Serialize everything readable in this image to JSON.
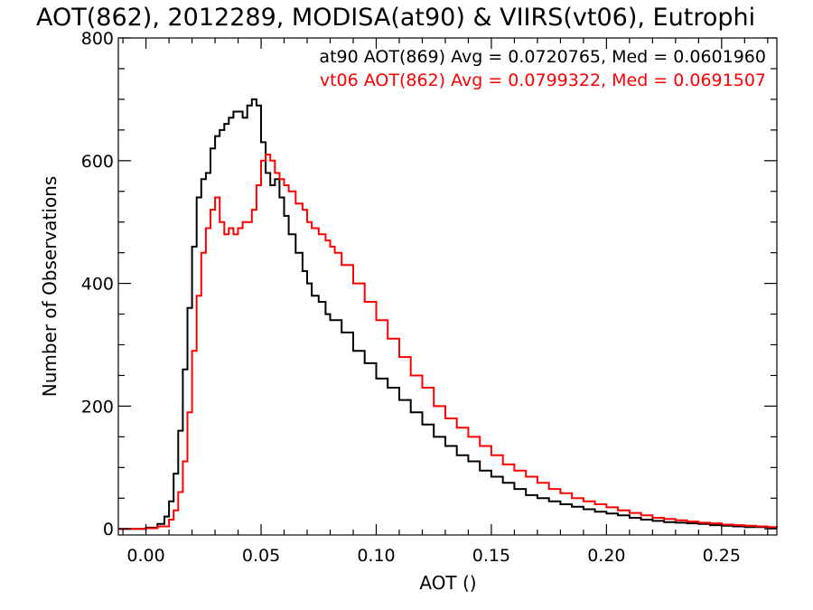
{
  "chart_data": {
    "type": "line",
    "title": "AOT(862), 2012289, MODISA(at90) & VIIRS(vt06), Eutrophi",
    "xlabel": "AOT ()",
    "ylabel": "Number of Observations",
    "xlim": [
      -0.012,
      0.274
    ],
    "ylim": [
      -10,
      800
    ],
    "xticks": [
      0.0,
      0.05,
      0.1,
      0.15,
      0.2,
      0.25
    ],
    "xtick_labels": [
      "0.00",
      "0.05",
      "0.10",
      "0.15",
      "0.20",
      "0.25"
    ],
    "yticks": [
      0,
      200,
      400,
      600,
      800
    ],
    "ytick_labels": [
      "0",
      "200",
      "400",
      "600",
      "800"
    ],
    "grid": false,
    "legend_placement": "top-right",
    "series": [
      {
        "name": "at90",
        "legend": "at90 AOT(869) Avg = 0.0720765, Med = 0.0601960",
        "color": "#000000",
        "x": [
          -0.012,
          0.0,
          0.005,
          0.008,
          0.01,
          0.012,
          0.014,
          0.016,
          0.018,
          0.02,
          0.022,
          0.024,
          0.026,
          0.028,
          0.03,
          0.032,
          0.034,
          0.036,
          0.038,
          0.04,
          0.042,
          0.044,
          0.046,
          0.048,
          0.05,
          0.052,
          0.054,
          0.056,
          0.058,
          0.06,
          0.062,
          0.065,
          0.068,
          0.07,
          0.072,
          0.075,
          0.078,
          0.08,
          0.085,
          0.09,
          0.095,
          0.1,
          0.105,
          0.11,
          0.115,
          0.12,
          0.125,
          0.13,
          0.135,
          0.14,
          0.145,
          0.15,
          0.155,
          0.16,
          0.165,
          0.17,
          0.175,
          0.18,
          0.185,
          0.19,
          0.195,
          0.2,
          0.205,
          0.21,
          0.215,
          0.22,
          0.225,
          0.23,
          0.235,
          0.24,
          0.245,
          0.25,
          0.255,
          0.26,
          0.265,
          0.27,
          0.274
        ],
        "values": [
          0,
          2,
          8,
          20,
          45,
          90,
          160,
          260,
          360,
          460,
          540,
          570,
          580,
          620,
          640,
          650,
          660,
          670,
          680,
          680,
          670,
          690,
          700,
          690,
          630,
          580,
          560,
          570,
          540,
          510,
          480,
          450,
          420,
          400,
          380,
          370,
          350,
          340,
          320,
          290,
          270,
          245,
          230,
          210,
          190,
          170,
          150,
          135,
          120,
          110,
          95,
          85,
          75,
          65,
          55,
          50,
          45,
          40,
          36,
          32,
          28,
          25,
          22,
          18,
          15,
          13,
          11,
          10,
          9,
          8,
          6,
          5,
          4,
          3,
          3,
          2,
          2
        ]
      },
      {
        "name": "vt06",
        "legend": "vt06 AOT(862) Avg = 0.0799322, Med = 0.0691507",
        "color": "#ff0000",
        "x": [
          -0.012,
          0.0,
          0.005,
          0.01,
          0.012,
          0.014,
          0.016,
          0.018,
          0.02,
          0.022,
          0.024,
          0.026,
          0.028,
          0.03,
          0.032,
          0.034,
          0.036,
          0.038,
          0.04,
          0.042,
          0.044,
          0.046,
          0.048,
          0.05,
          0.052,
          0.054,
          0.056,
          0.058,
          0.06,
          0.062,
          0.065,
          0.068,
          0.07,
          0.072,
          0.075,
          0.078,
          0.08,
          0.082,
          0.085,
          0.09,
          0.095,
          0.1,
          0.105,
          0.11,
          0.115,
          0.12,
          0.125,
          0.13,
          0.135,
          0.14,
          0.145,
          0.15,
          0.155,
          0.16,
          0.165,
          0.17,
          0.175,
          0.18,
          0.185,
          0.19,
          0.195,
          0.2,
          0.205,
          0.21,
          0.215,
          0.22,
          0.225,
          0.23,
          0.235,
          0.24,
          0.245,
          0.25,
          0.255,
          0.26,
          0.265,
          0.27,
          0.274
        ],
        "values": [
          0,
          1,
          4,
          15,
          30,
          60,
          110,
          190,
          290,
          380,
          450,
          490,
          520,
          540,
          500,
          480,
          490,
          480,
          490,
          500,
          500,
          520,
          560,
          600,
          610,
          600,
          580,
          570,
          560,
          550,
          530,
          520,
          500,
          490,
          480,
          470,
          460,
          450,
          430,
          400,
          370,
          340,
          310,
          280,
          250,
          230,
          200,
          180,
          165,
          150,
          135,
          120,
          105,
          95,
          85,
          75,
          65,
          58,
          50,
          45,
          40,
          35,
          30,
          26,
          22,
          18,
          16,
          14,
          12,
          10,
          9,
          7,
          6,
          5,
          4,
          3,
          2
        ]
      }
    ]
  }
}
